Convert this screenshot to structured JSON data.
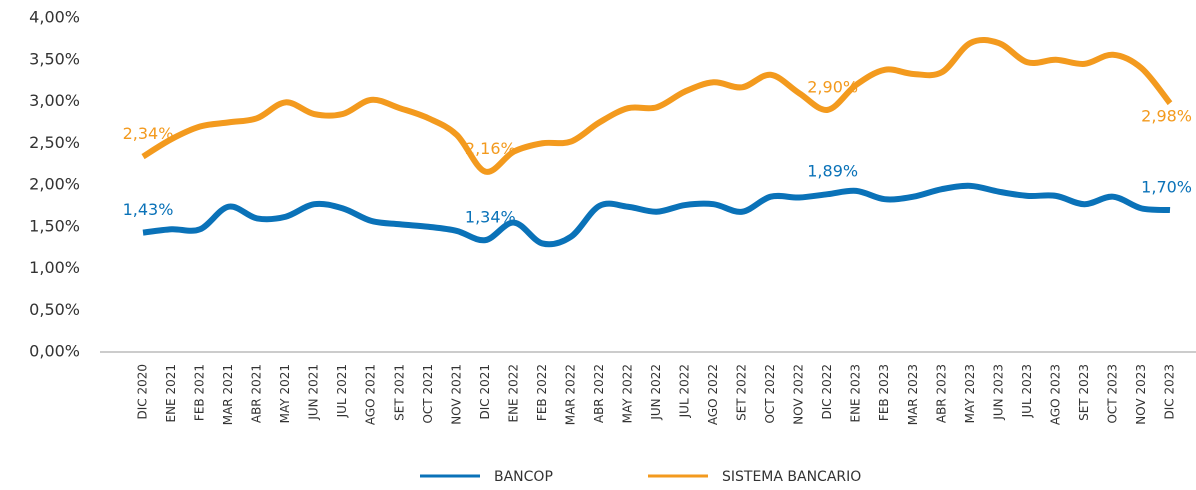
{
  "chart_data": {
    "type": "line",
    "categories": [
      "DIC 2020",
      "ENE 2021",
      "FEB 2021",
      "MAR 2021",
      "ABR 2021",
      "MAY 2021",
      "JUN 2021",
      "JUL 2021",
      "AGO 2021",
      "SET 2021",
      "OCT 2021",
      "NOV 2021",
      "DIC 2021",
      "ENE 2022",
      "FEB 2022",
      "MAR 2022",
      "ABR 2022",
      "MAY 2022",
      "JUN 2022",
      "JUL 2022",
      "AGO 2022",
      "SET 2022",
      "OCT 2022",
      "NOV 2022",
      "DIC 2022",
      "ENE 2023",
      "FEB 2023",
      "MAR 2023",
      "ABR 2023",
      "MAY 2023",
      "JUN 2023",
      "JUL 2023",
      "AGO 2023",
      "SET 2023",
      "OCT 2023",
      "NOV 2023",
      "DIC 2023"
    ],
    "series": [
      {
        "name": "BANCOP",
        "color": "#0a72b8",
        "values": [
          1.43,
          1.47,
          1.47,
          1.74,
          1.6,
          1.62,
          1.77,
          1.72,
          1.57,
          1.53,
          1.5,
          1.45,
          1.34,
          1.55,
          1.3,
          1.38,
          1.75,
          1.74,
          1.68,
          1.76,
          1.77,
          1.68,
          1.86,
          1.85,
          1.89,
          1.93,
          1.83,
          1.86,
          1.95,
          1.99,
          1.92,
          1.87,
          1.87,
          1.77,
          1.86,
          1.72,
          1.7
        ],
        "value_labels": [
          "1,43%",
          null,
          null,
          null,
          null,
          null,
          null,
          null,
          null,
          null,
          null,
          null,
          "1,34%",
          null,
          null,
          null,
          null,
          null,
          null,
          null,
          null,
          null,
          null,
          null,
          "1,89%",
          null,
          null,
          null,
          null,
          null,
          null,
          null,
          null,
          null,
          null,
          null,
          "1,70%"
        ]
      },
      {
        "name": "SISTEMA BANCARIO",
        "color": "#f39a1e",
        "values": [
          2.34,
          2.55,
          2.7,
          2.75,
          2.8,
          2.99,
          2.85,
          2.85,
          3.02,
          2.92,
          2.8,
          2.6,
          2.16,
          2.4,
          2.5,
          2.52,
          2.75,
          2.92,
          2.93,
          3.12,
          3.23,
          3.17,
          3.32,
          3.1,
          2.9,
          3.2,
          3.38,
          3.33,
          3.35,
          3.7,
          3.7,
          3.47,
          3.5,
          3.45,
          3.56,
          3.4,
          2.98
        ],
        "value_labels": [
          "2,34%",
          null,
          null,
          null,
          null,
          null,
          null,
          null,
          null,
          null,
          null,
          null,
          "2,16%",
          null,
          null,
          null,
          null,
          null,
          null,
          null,
          null,
          null,
          null,
          null,
          "2,90%",
          null,
          null,
          null,
          null,
          null,
          null,
          null,
          null,
          null,
          null,
          null,
          "2,98%"
        ]
      }
    ],
    "ylim": [
      0,
      4
    ],
    "yticks": [
      {
        "value": 0,
        "label": "0,00%"
      },
      {
        "value": 0.5,
        "label": "0,50%"
      },
      {
        "value": 1,
        "label": "1,00%"
      },
      {
        "value": 1.5,
        "label": "1,50%"
      },
      {
        "value": 2,
        "label": "2,00%"
      },
      {
        "value": 2.5,
        "label": "2,50%"
      },
      {
        "value": 3,
        "label": "3,00%"
      },
      {
        "value": 3.5,
        "label": "3,50%"
      },
      {
        "value": 4,
        "label": "4,00%"
      }
    ],
    "grid": false
  }
}
